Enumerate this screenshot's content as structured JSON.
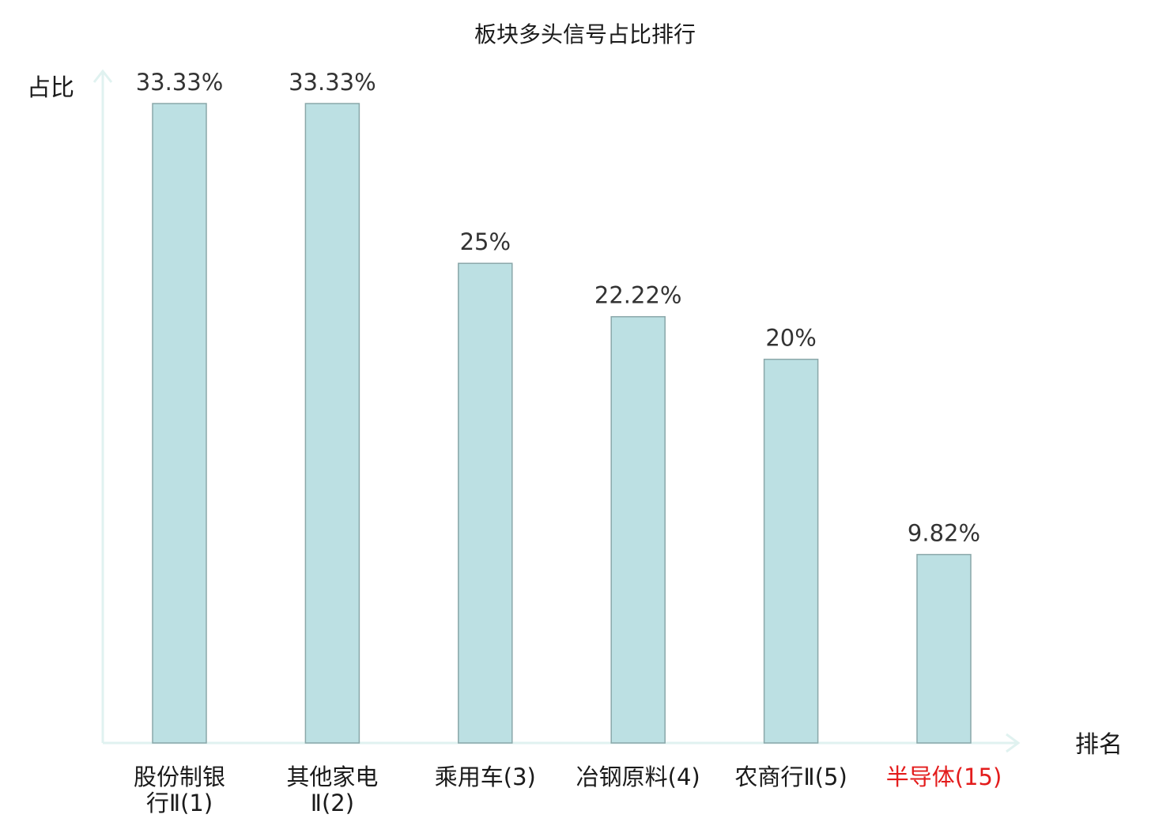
{
  "chart_data": {
    "type": "bar",
    "title": "板块多头信号占比排行",
    "xlabel": "排名",
    "ylabel": "占比",
    "ylim": [
      0,
      33.33
    ],
    "grid": false,
    "categories": [
      {
        "name_lines": [
          "股份制银",
          "行Ⅱ"
        ],
        "rank": "(1)",
        "highlight": false
      },
      {
        "name_lines": [
          "其他家电",
          "Ⅱ"
        ],
        "rank": "(2)",
        "highlight": false
      },
      {
        "name_lines": [
          "乘用车"
        ],
        "rank": "(3)",
        "highlight": false
      },
      {
        "name_lines": [
          "冶钢原料"
        ],
        "rank": "(4)",
        "highlight": false
      },
      {
        "name_lines": [
          "农商行Ⅱ"
        ],
        "rank": "(5)",
        "highlight": false
      },
      {
        "name_lines": [
          "半导体"
        ],
        "rank": "(15)",
        "highlight": true
      }
    ],
    "values": [
      33.33,
      33.33,
      25,
      22.22,
      20,
      9.82
    ],
    "value_labels": [
      "33.33%",
      "33.33%",
      "25%",
      "22.22%",
      "20%",
      "9.82%"
    ]
  },
  "colors": {
    "bar_fill": "#bce0e3",
    "bar_stroke": "#8aa7a9",
    "axis": "#e0f2f0",
    "highlight": "#e31c1c"
  }
}
